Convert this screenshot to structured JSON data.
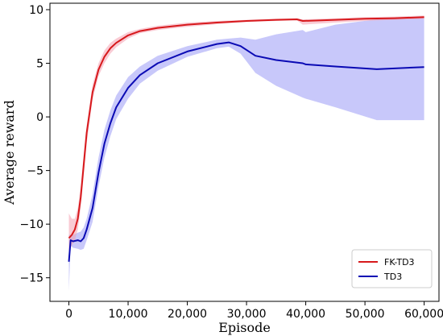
{
  "chart_data": {
    "type": "line",
    "title": "",
    "xlabel": "Episode",
    "ylabel": "Average reward",
    "xlim": [
      -3200,
      62500
    ],
    "ylim": [
      -17.2,
      10.6
    ],
    "xticks": [
      0,
      10000,
      20000,
      30000,
      40000,
      50000,
      60000
    ],
    "xtick_labels": [
      "0",
      "10,000",
      "20,000",
      "30,000",
      "40,000",
      "50,000",
      "60,000"
    ],
    "yticks": [
      -15,
      -10,
      -5,
      0,
      5,
      10
    ],
    "ytick_labels": [
      "−15",
      "−10",
      "−5",
      "0",
      "5",
      "10"
    ],
    "grid": false,
    "legend_position": "bottom-right",
    "series": [
      {
        "name": "FK-TD3",
        "color": "#d7191c",
        "band_color": "#f4a0b0",
        "x": [
          0,
          500,
          1000,
          1500,
          2000,
          2500,
          3000,
          4000,
          5000,
          6000,
          7000,
          8000,
          10000,
          12000,
          15000,
          20000,
          25000,
          30000,
          35000,
          38500,
          39500,
          45000,
          50000,
          55000,
          60000
        ],
        "y": [
          -11.3,
          -11.0,
          -10.5,
          -9.5,
          -7.5,
          -4.5,
          -1.5,
          2.3,
          4.4,
          5.6,
          6.4,
          6.9,
          7.6,
          8.0,
          8.3,
          8.6,
          8.8,
          8.95,
          9.05,
          9.1,
          8.95,
          9.05,
          9.15,
          9.2,
          9.3
        ],
        "upper": [
          -9.0,
          -9.5,
          -9.5,
          -8.5,
          -6.5,
          -3.5,
          -0.8,
          3.0,
          5.0,
          6.2,
          6.9,
          7.3,
          7.9,
          8.2,
          8.5,
          8.8,
          8.95,
          9.05,
          9.15,
          9.2,
          9.1,
          9.2,
          9.3,
          9.35,
          9.45
        ],
        "lower": [
          -12.5,
          -12.0,
          -11.5,
          -10.5,
          -8.5,
          -5.5,
          -2.5,
          1.6,
          3.8,
          5.0,
          5.9,
          6.5,
          7.3,
          7.8,
          8.1,
          8.4,
          8.65,
          8.85,
          8.95,
          9.0,
          8.6,
          8.8,
          8.95,
          9.05,
          9.15
        ]
      },
      {
        "name": "TD3",
        "color": "#0a0ab4",
        "band_color": "#9b9bf5",
        "x": [
          0,
          300,
          700,
          1500,
          2000,
          2500,
          3000,
          4000,
          5000,
          6000,
          7000,
          8000,
          10000,
          12000,
          15000,
          20000,
          25000,
          27000,
          29000,
          31500,
          35000,
          39500,
          40000,
          45000,
          52000,
          60000
        ],
        "y": [
          -13.5,
          -11.5,
          -11.6,
          -11.5,
          -11.6,
          -11.3,
          -10.5,
          -8.5,
          -5.2,
          -2.5,
          -0.6,
          0.9,
          2.7,
          3.9,
          5.0,
          6.1,
          6.8,
          6.95,
          6.6,
          5.7,
          5.3,
          5.0,
          4.9,
          4.7,
          4.45,
          4.65
        ],
        "upper": [
          -11.0,
          -11.0,
          -11.0,
          -10.8,
          -10.7,
          -10.3,
          -9.5,
          -7.2,
          -3.8,
          -1.2,
          0.6,
          2.0,
          3.7,
          4.7,
          5.7,
          6.6,
          7.2,
          7.3,
          7.4,
          7.2,
          7.7,
          8.1,
          7.9,
          8.6,
          9.1,
          9.3
        ],
        "lower": [
          -16.2,
          -12.0,
          -12.2,
          -12.3,
          -12.4,
          -12.3,
          -11.5,
          -9.8,
          -6.5,
          -3.8,
          -1.8,
          -0.2,
          1.7,
          3.1,
          4.3,
          5.6,
          6.4,
          6.55,
          5.9,
          4.1,
          2.9,
          1.8,
          1.7,
          0.9,
          -0.3,
          -0.3
        ]
      }
    ]
  }
}
